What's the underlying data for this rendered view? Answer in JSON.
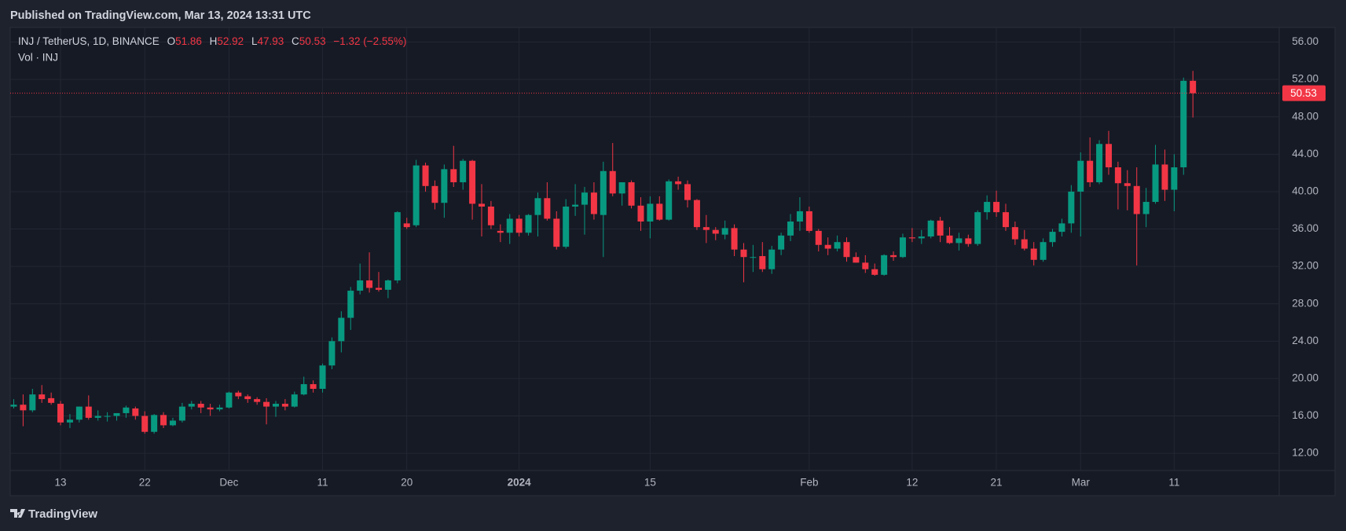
{
  "header": {
    "published": "Published on TradingView.com, Mar 13, 2024 13:31 UTC"
  },
  "footer": {
    "brand": "TradingView"
  },
  "chart_data": {
    "type": "candlestick",
    "title": "INJ / TetherUS, 1D, BINANCE",
    "ohlc_labels": [
      "O",
      "H",
      "L",
      "C"
    ],
    "change_label": "−1.32 (−2.55%)",
    "volume_label": "Vol · INJ",
    "up_color": "#089981",
    "down_color": "#f23645",
    "grid": true,
    "ylim": [
      10.16,
      57.56
    ],
    "yticks": [
      {
        "value": 12,
        "label": "12.00"
      },
      {
        "value": 16,
        "label": "16.00"
      },
      {
        "value": 20,
        "label": "20.00"
      },
      {
        "value": 24,
        "label": "24.00"
      },
      {
        "value": 28,
        "label": "28.00"
      },
      {
        "value": 32,
        "label": "32.00"
      },
      {
        "value": 36,
        "label": "36.00"
      },
      {
        "value": 40,
        "label": "40.00"
      },
      {
        "value": 44,
        "label": "44.00"
      },
      {
        "value": 48,
        "label": "48.00"
      },
      {
        "value": 52,
        "label": "52.00"
      },
      {
        "value": 56,
        "label": "56.00"
      }
    ],
    "categories": [
      null,
      null,
      null,
      null,
      null,
      "13",
      null,
      null,
      null,
      null,
      null,
      null,
      null,
      null,
      "22",
      null,
      null,
      null,
      null,
      null,
      null,
      null,
      null,
      "Dec",
      null,
      null,
      null,
      null,
      null,
      null,
      null,
      null,
      null,
      "11",
      null,
      null,
      null,
      null,
      null,
      null,
      null,
      null,
      "20",
      null,
      null,
      null,
      null,
      null,
      null,
      null,
      null,
      null,
      null,
      null,
      "2024",
      null,
      null,
      null,
      null,
      null,
      null,
      null,
      null,
      null,
      null,
      null,
      null,
      null,
      "15",
      null,
      null,
      null,
      null,
      null,
      null,
      null,
      null,
      null,
      null,
      null,
      null,
      null,
      null,
      null,
      null,
      "Feb",
      null,
      null,
      null,
      null,
      null,
      null,
      null,
      null,
      null,
      null,
      "12",
      null,
      null,
      null,
      null,
      null,
      null,
      null,
      null,
      "21",
      null,
      null,
      null,
      null,
      null,
      null,
      null,
      null,
      "Mar",
      null,
      null,
      null,
      null,
      null,
      null,
      null,
      null,
      null,
      "11",
      null,
      null
    ],
    "open": [
      17.0,
      17.2,
      16.6,
      18.3,
      17.9,
      17.3,
      15.3,
      15.6,
      17.0,
      15.8,
      16.0,
      16.0,
      16.3,
      16.8,
      16.0,
      14.3,
      16.1,
      15.0,
      15.5,
      17.0,
      17.3,
      16.9,
      16.7,
      16.9,
      18.5,
      18.1,
      17.8,
      17.5,
      17.0,
      17.3,
      17.0,
      18.3,
      19.4,
      18.9,
      21.4,
      24.0,
      26.5,
      29.4,
      30.5,
      29.7,
      29.5,
      30.5,
      36.6,
      36.4,
      42.8,
      40.6,
      38.8,
      42.4,
      41.0,
      43.3,
      38.7,
      38.4,
      35.8,
      35.6,
      37.1,
      35.6,
      37.5,
      39.3,
      37.1,
      34.1,
      38.4,
      38.6,
      39.9,
      37.5,
      42.2,
      39.8,
      41.0,
      38.5,
      36.8,
      38.7,
      37.0,
      41.1,
      40.8,
      39.1,
      36.2,
      35.9,
      35.4,
      36.1,
      33.8,
      33.0,
      33.1,
      31.7,
      33.8,
      35.3,
      36.8,
      37.9,
      35.8,
      34.3,
      33.9,
      34.6,
      33.0,
      32.4,
      31.7,
      31.1,
      33.2,
      33.0,
      35.1,
      35.0,
      35.2,
      36.9,
      35.3,
      34.5,
      35.0,
      34.4,
      37.8,
      38.9,
      37.8,
      36.2,
      34.9,
      33.9,
      32.7,
      34.6,
      35.7,
      36.6,
      40.0,
      43.3,
      41.0,
      45.1,
      42.6,
      40.9,
      40.6,
      37.6,
      38.9,
      42.9,
      40.2,
      42.6,
      51.86
    ],
    "high": [
      17.8,
      18.3,
      18.9,
      19.3,
      18.5,
      17.6,
      16.2,
      17.0,
      18.2,
      16.6,
      16.4,
      16.3,
      17.1,
      17.0,
      16.5,
      16.2,
      16.4,
      15.8,
      17.4,
      17.6,
      17.6,
      17.3,
      17.2,
      18.6,
      18.7,
      18.3,
      18.0,
      17.9,
      17.6,
      17.8,
      18.6,
      20.2,
      19.8,
      21.6,
      24.4,
      27.2,
      29.8,
      32.3,
      33.5,
      31.4,
      30.6,
      37.9,
      37.2,
      43.4,
      43.1,
      41.2,
      42.9,
      44.9,
      43.5,
      43.4,
      40.8,
      39.0,
      36.5,
      37.6,
      37.5,
      37.6,
      39.9,
      41.0,
      37.9,
      39.2,
      40.8,
      40.5,
      41.0,
      43.2,
      45.2,
      41.0,
      41.2,
      39.4,
      39.5,
      39.5,
      41.3,
      41.6,
      41.2,
      39.2,
      37.5,
      36.2,
      36.9,
      36.5,
      34.5,
      34.3,
      34.6,
      34.2,
      35.6,
      37.6,
      39.4,
      38.4,
      36.0,
      35.1,
      35.3,
      35.1,
      33.5,
      33.2,
      32.3,
      33.3,
      33.6,
      35.5,
      36.1,
      35.9,
      37.0,
      37.3,
      36.2,
      35.6,
      35.4,
      38.0,
      39.6,
      40.1,
      38.7,
      36.8,
      35.9,
      34.6,
      35.0,
      36.0,
      37.1,
      40.7,
      44.2,
      45.8,
      45.5,
      46.5,
      43.2,
      42.3,
      42.6,
      40.4,
      45.0,
      44.5,
      44.0,
      52.2,
      52.92
    ],
    "low": [
      16.8,
      14.9,
      16.4,
      17.4,
      17.2,
      15.0,
      14.7,
      15.3,
      15.6,
      15.5,
      15.4,
      15.5,
      15.8,
      15.6,
      14.1,
      14.1,
      14.7,
      14.9,
      15.3,
      16.7,
      16.3,
      16.0,
      16.5,
      16.8,
      17.8,
      17.4,
      17.2,
      15.1,
      15.9,
      16.6,
      16.9,
      18.2,
      18.5,
      18.5,
      21.0,
      22.8,
      25.2,
      29.0,
      29.2,
      29.3,
      28.6,
      30.2,
      36.0,
      36.2,
      40.0,
      38.1,
      37.2,
      40.5,
      40.2,
      37.0,
      35.2,
      36.0,
      34.6,
      34.4,
      35.2,
      35.3,
      35.2,
      36.9,
      33.8,
      33.9,
      37.4,
      35.4,
      37.0,
      33.0,
      39.5,
      38.5,
      38.2,
      35.8,
      35.0,
      36.9,
      36.9,
      40.2,
      38.3,
      35.9,
      34.5,
      34.8,
      34.9,
      33.1,
      30.3,
      31.4,
      31.4,
      31.2,
      33.2,
      34.7,
      35.8,
      35.6,
      33.6,
      33.2,
      33.6,
      32.5,
      32.4,
      31.3,
      31.0,
      31.0,
      32.6,
      32.9,
      34.6,
      34.4,
      35.0,
      34.6,
      34.4,
      33.7,
      34.1,
      34.2,
      37.0,
      37.3,
      35.8,
      34.3,
      33.7,
      32.1,
      32.5,
      34.1,
      35.2,
      35.6,
      35.2,
      40.5,
      40.8,
      41.8,
      38.1,
      38.0,
      32.1,
      36.2,
      38.7,
      39.0,
      37.9,
      41.8,
      47.93
    ],
    "close": [
      17.2,
      16.6,
      18.3,
      17.8,
      17.4,
      15.3,
      15.6,
      17.0,
      15.8,
      16.0,
      16.0,
      16.3,
      16.9,
      16.0,
      14.3,
      16.1,
      15.0,
      15.5,
      17.0,
      17.3,
      16.9,
      16.7,
      16.9,
      18.5,
      18.1,
      17.8,
      17.5,
      17.0,
      17.3,
      17.0,
      18.3,
      19.4,
      18.9,
      21.4,
      24.0,
      26.5,
      29.4,
      30.5,
      29.7,
      29.5,
      30.5,
      37.8,
      36.2,
      42.8,
      40.6,
      38.8,
      42.4,
      41.0,
      43.3,
      38.7,
      38.4,
      36.4,
      35.6,
      37.1,
      35.6,
      37.5,
      39.3,
      37.1,
      34.1,
      38.4,
      38.6,
      39.9,
      37.6,
      42.2,
      39.8,
      41.0,
      38.5,
      36.8,
      38.7,
      37.0,
      41.1,
      40.8,
      39.1,
      36.2,
      35.9,
      35.5,
      36.1,
      33.8,
      33.0,
      33.0,
      31.7,
      33.8,
      35.3,
      36.8,
      37.9,
      35.8,
      34.3,
      33.9,
      34.6,
      33.0,
      32.4,
      31.7,
      31.1,
      33.2,
      33.0,
      35.1,
      35.0,
      35.2,
      36.9,
      35.3,
      34.5,
      35.0,
      34.4,
      37.8,
      38.9,
      37.8,
      36.2,
      34.9,
      33.9,
      32.7,
      34.6,
      35.7,
      36.6,
      40.0,
      43.3,
      41.0,
      45.1,
      42.6,
      40.9,
      40.6,
      37.6,
      38.9,
      42.9,
      40.2,
      42.6,
      51.86,
      50.53
    ]
  }
}
